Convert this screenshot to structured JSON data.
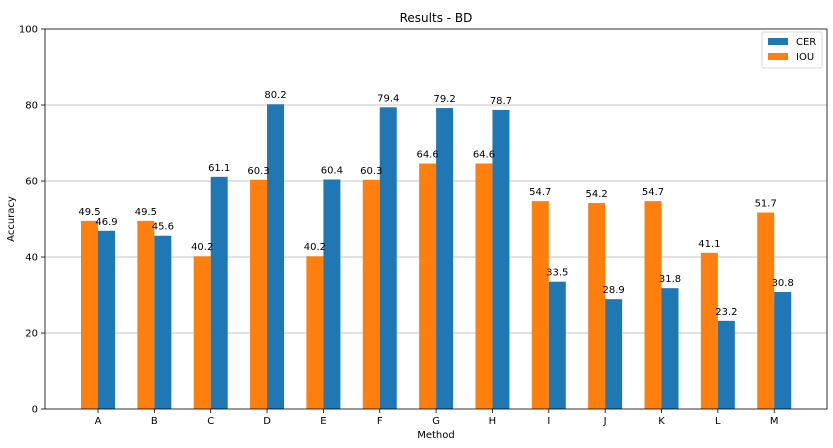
{
  "chart_data": {
    "type": "bar",
    "title": "Results - BD",
    "xlabel": "Method",
    "ylabel": "Accuracy",
    "ylim": [
      0,
      100
    ],
    "yticks": [
      0,
      20,
      40,
      60,
      80,
      100
    ],
    "grid": "horizontal",
    "legend_position": "top-right",
    "categories": [
      "A",
      "B",
      "C",
      "D",
      "E",
      "F",
      "G",
      "H",
      "I",
      "J",
      "K",
      "L",
      "M"
    ],
    "series": [
      {
        "name": "IOU",
        "color": "#ff7f0e",
        "values": [
          49.5,
          49.5,
          40.2,
          60.3,
          40.2,
          60.3,
          64.6,
          64.6,
          54.7,
          54.2,
          54.7,
          41.1,
          51.7
        ]
      },
      {
        "name": "CER",
        "color": "#1f77b4",
        "values": [
          46.9,
          45.6,
          61.1,
          80.2,
          60.4,
          79.4,
          79.2,
          78.7,
          33.5,
          28.9,
          31.8,
          23.2,
          30.8
        ]
      }
    ],
    "legend_order": [
      "CER",
      "IOU"
    ]
  }
}
